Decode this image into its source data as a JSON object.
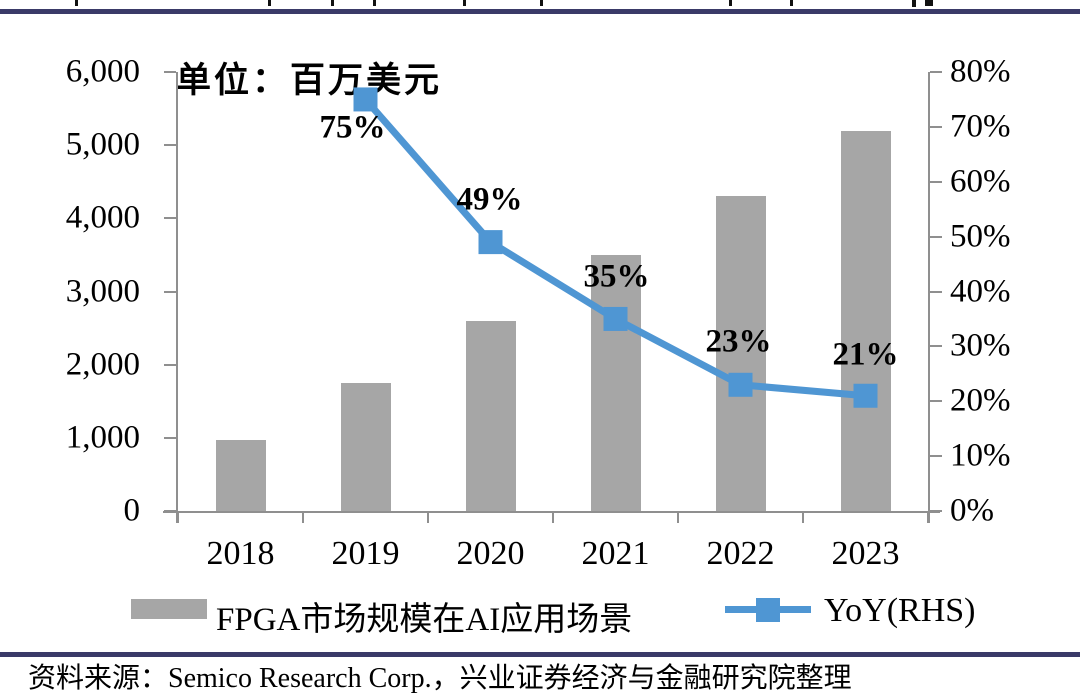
{
  "chart_data": {
    "type": "bar",
    "subtype": "combo-bar-line",
    "title": "",
    "unit_annotation": "单位：百万美元",
    "categories": [
      "2018",
      "2019",
      "2020",
      "2021",
      "2022",
      "2023"
    ],
    "series": [
      {
        "name": "FPGA市场规模在AI应用场景",
        "type": "bar",
        "axis": "left",
        "color": "#a6a6a6",
        "values": [
          975,
          1750,
          2600,
          3500,
          4300,
          5200
        ]
      },
      {
        "name": "YoY(RHS)",
        "type": "line",
        "axis": "right",
        "color": "#4f96d3",
        "values": [
          null,
          75,
          49,
          35,
          23,
          21
        ],
        "point_labels": [
          null,
          "75%",
          "49%",
          "35%",
          "23%",
          "21%"
        ],
        "point_label_offsets": [
          null,
          [
            -13,
            29
          ],
          [
            -1,
            -42
          ],
          [
            1,
            -42
          ],
          [
            -2,
            -43
          ],
          [
            0,
            -41
          ]
        ]
      }
    ],
    "left_axis": {
      "min": 0,
      "max": 6000,
      "tick_interval": 1000,
      "tick_labels": [
        "0",
        "1,000",
        "2,000",
        "3,000",
        "4,000",
        "5,000",
        "6,000"
      ]
    },
    "right_axis": {
      "min": 0,
      "max": 80,
      "tick_interval": 10,
      "tick_labels": [
        "0%",
        "10%",
        "20%",
        "30%",
        "40%",
        "50%",
        "60%",
        "70%",
        "80%"
      ]
    },
    "grid": false,
    "legend_position": "bottom"
  },
  "legend": {
    "items": [
      {
        "label": "FPGA市场规模在AI应用场景",
        "swatch": "gray-bar"
      },
      {
        "label": "YoY(RHS)",
        "swatch": "blue-line-marker"
      }
    ]
  },
  "footer": {
    "source_text": "资料来源：Semico Research Corp.，兴业证券经济与金融研究院整理"
  },
  "colors": {
    "bar": "#a6a6a6",
    "line": "#4f96d3",
    "divider_rule": "#3a3a68",
    "axis": "#8f8f8f",
    "text": "#000000"
  }
}
